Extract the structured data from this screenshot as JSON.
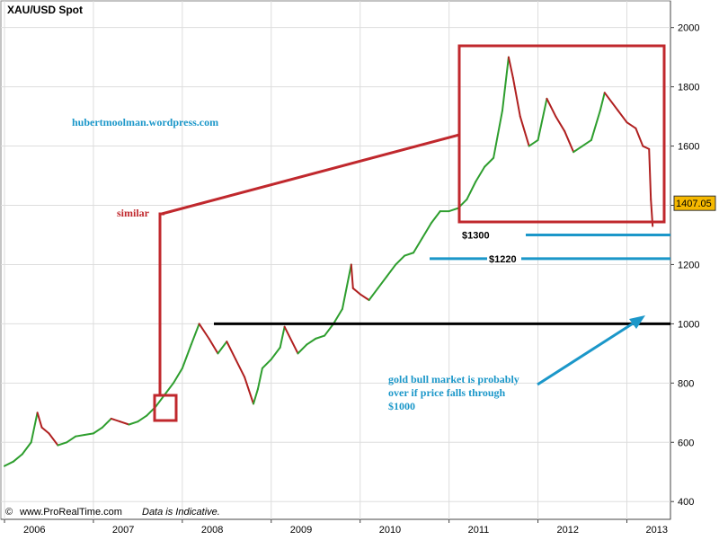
{
  "chart_data": {
    "type": "line",
    "title": "XAU/USD Spot",
    "xlabel": "",
    "ylabel": "",
    "x_tick_labels": [
      "2006",
      "2007",
      "2008",
      "2009",
      "2010",
      "2011",
      "2012",
      "2013"
    ],
    "y_ticks": [
      400,
      600,
      800,
      1000,
      1200,
      1400,
      1600,
      1800,
      2000
    ],
    "ylim": [
      340,
      2090
    ],
    "xlim": [
      2006.0,
      2013.45
    ],
    "grid": true,
    "series": [
      {
        "name": "XAU/USD Spot",
        "x": [
          2006.0,
          2006.1,
          2006.2,
          2006.3,
          2006.37,
          2006.42,
          2006.5,
          2006.6,
          2006.7,
          2006.8,
          2006.9,
          2007.0,
          2007.1,
          2007.2,
          2007.3,
          2007.4,
          2007.5,
          2007.6,
          2007.7,
          2007.8,
          2007.9,
          2008.0,
          2008.1,
          2008.19,
          2008.3,
          2008.4,
          2008.5,
          2008.6,
          2008.7,
          2008.8,
          2008.85,
          2008.9,
          2009.0,
          2009.1,
          2009.15,
          2009.3,
          2009.4,
          2009.5,
          2009.6,
          2009.7,
          2009.8,
          2009.9,
          2009.92,
          2010.0,
          2010.1,
          2010.2,
          2010.3,
          2010.4,
          2010.5,
          2010.6,
          2010.7,
          2010.8,
          2010.9,
          2011.0,
          2011.1,
          2011.2,
          2011.3,
          2011.4,
          2011.5,
          2011.6,
          2011.67,
          2011.72,
          2011.8,
          2011.9,
          2012.0,
          2012.1,
          2012.2,
          2012.3,
          2012.4,
          2012.5,
          2012.6,
          2012.7,
          2012.75,
          2012.8,
          2012.9,
          2013.0,
          2013.1,
          2013.18,
          2013.25,
          2013.27,
          2013.29
        ],
        "values": [
          520,
          535,
          560,
          600,
          700,
          650,
          630,
          590,
          600,
          620,
          625,
          630,
          650,
          680,
          670,
          660,
          670,
          690,
          720,
          760,
          800,
          850,
          930,
          1000,
          950,
          900,
          940,
          880,
          820,
          730,
          780,
          850,
          880,
          920,
          990,
          900,
          930,
          950,
          960,
          1000,
          1050,
          1200,
          1120,
          1100,
          1080,
          1120,
          1160,
          1200,
          1230,
          1240,
          1290,
          1340,
          1380,
          1380,
          1390,
          1420,
          1480,
          1530,
          1560,
          1720,
          1900,
          1830,
          1700,
          1600,
          1620,
          1760,
          1700,
          1650,
          1580,
          1600,
          1620,
          1720,
          1780,
          1760,
          1720,
          1680,
          1660,
          1600,
          1590,
          1420,
          1330
        ]
      }
    ],
    "annotations": {
      "price_badge": "1407.05",
      "watermark": "hubertmoolman.wordpress.com",
      "similar_label": "similar",
      "support_1300_label": "$1300",
      "support_1220_label": "$1220",
      "note_line1": "gold bull market is probably",
      "note_line2": "over if price falls through",
      "note_line3": "$1000",
      "level_1000": 1000,
      "level_1300": 1300,
      "level_1220": 1220
    },
    "footer": {
      "copyright_symbol": "©",
      "source": "www.ProRealTime.com",
      "disclaimer": "Data is Indicative."
    },
    "colors": {
      "up": "#2e9e2e",
      "down": "#b02020",
      "annotation_red": "#c0282d",
      "annotation_blue": "#1b97c9",
      "grid": "#dddddd",
      "badge_bg": "#f5b800"
    }
  }
}
